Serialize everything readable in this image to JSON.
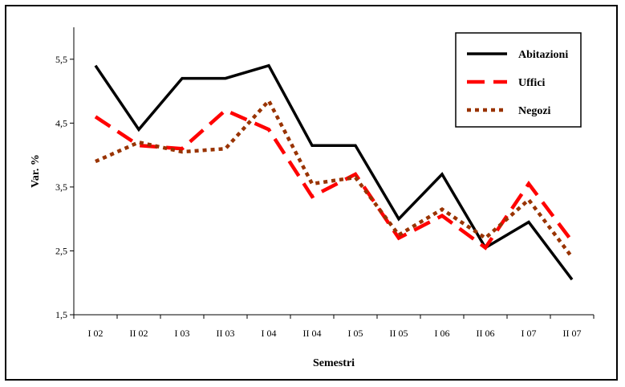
{
  "chart_data": {
    "type": "line",
    "xlabel": "Semestri",
    "ylabel": "Var. %",
    "categories": [
      "I 02",
      "II 02",
      "I 03",
      "II 03",
      "I 04",
      "II 04",
      "I 05",
      "II 05",
      "I 06",
      "II 06",
      "I 07",
      "II 07"
    ],
    "yticks": [
      "1,5",
      "2,5",
      "3,5",
      "4,5",
      "5,5"
    ],
    "ylim": [
      1.5,
      6.0
    ],
    "grid": false,
    "legend_position": "top-right",
    "series": [
      {
        "name": "Abitazioni",
        "color": "#000000",
        "style": "solid",
        "values": [
          5.4,
          4.4,
          5.2,
          5.2,
          5.4,
          4.15,
          4.15,
          3.0,
          3.7,
          2.55,
          2.95,
          2.05
        ]
      },
      {
        "name": "Uffici",
        "color": "#ff0000",
        "style": "dashed",
        "values": [
          4.6,
          4.15,
          4.1,
          4.7,
          4.4,
          3.35,
          3.7,
          2.7,
          3.05,
          2.55,
          3.55,
          2.65
        ]
      },
      {
        "name": "Negozi",
        "color": "#993300",
        "style": "dotted",
        "values": [
          3.9,
          4.2,
          4.05,
          4.1,
          4.85,
          3.55,
          3.65,
          2.75,
          3.15,
          2.7,
          3.3,
          2.4
        ]
      }
    ]
  }
}
